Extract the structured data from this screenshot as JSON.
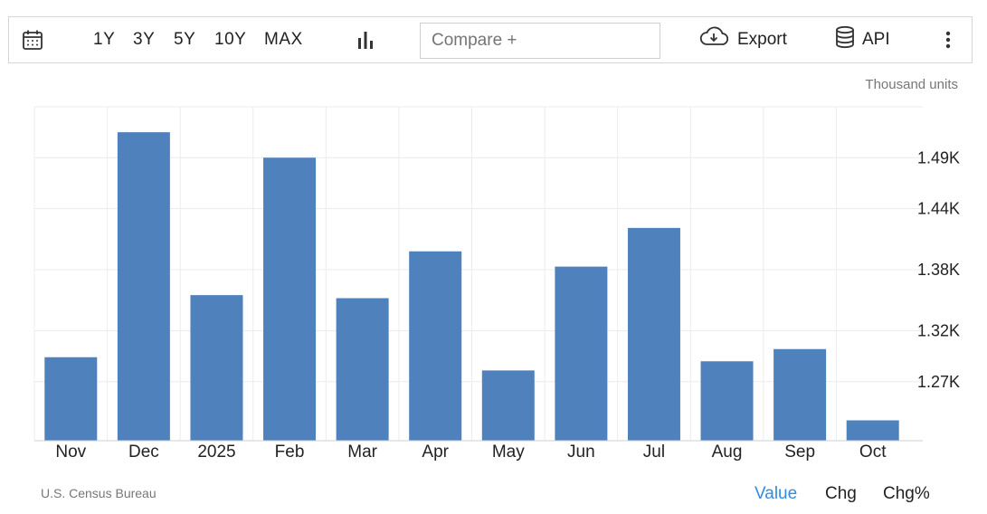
{
  "toolbar": {
    "ranges": [
      "1Y",
      "3Y",
      "5Y",
      "10Y",
      "MAX"
    ],
    "compare_placeholder": "Compare +",
    "export_label": "Export",
    "api_label": "API"
  },
  "units": "Thousand units",
  "source": "U.S. Census Bureau",
  "tabs": {
    "value": "Value",
    "chg": "Chg",
    "chg_pct": "Chg%"
  },
  "colors": {
    "bar": "#4f81bd",
    "active_tab": "#2f8be6",
    "grid": "#ececec"
  },
  "chart_data": {
    "type": "bar",
    "categories": [
      "Nov",
      "Dec",
      "2025",
      "Feb",
      "Mar",
      "Apr",
      "May",
      "Jun",
      "Jul",
      "Aug",
      "Sep",
      "Oct"
    ],
    "values": [
      1294,
      1515,
      1355,
      1490,
      1352,
      1398,
      1281,
      1383,
      1421,
      1290,
      1302,
      1232
    ],
    "ylim": [
      1212,
      1540
    ],
    "yticks": [
      1270,
      1320,
      1380,
      1440,
      1490
    ],
    "ytick_labels": [
      "1.27K",
      "1.32K",
      "1.38K",
      "1.44K",
      "1.49K"
    ],
    "grid": true,
    "y_axis_side": "right"
  }
}
